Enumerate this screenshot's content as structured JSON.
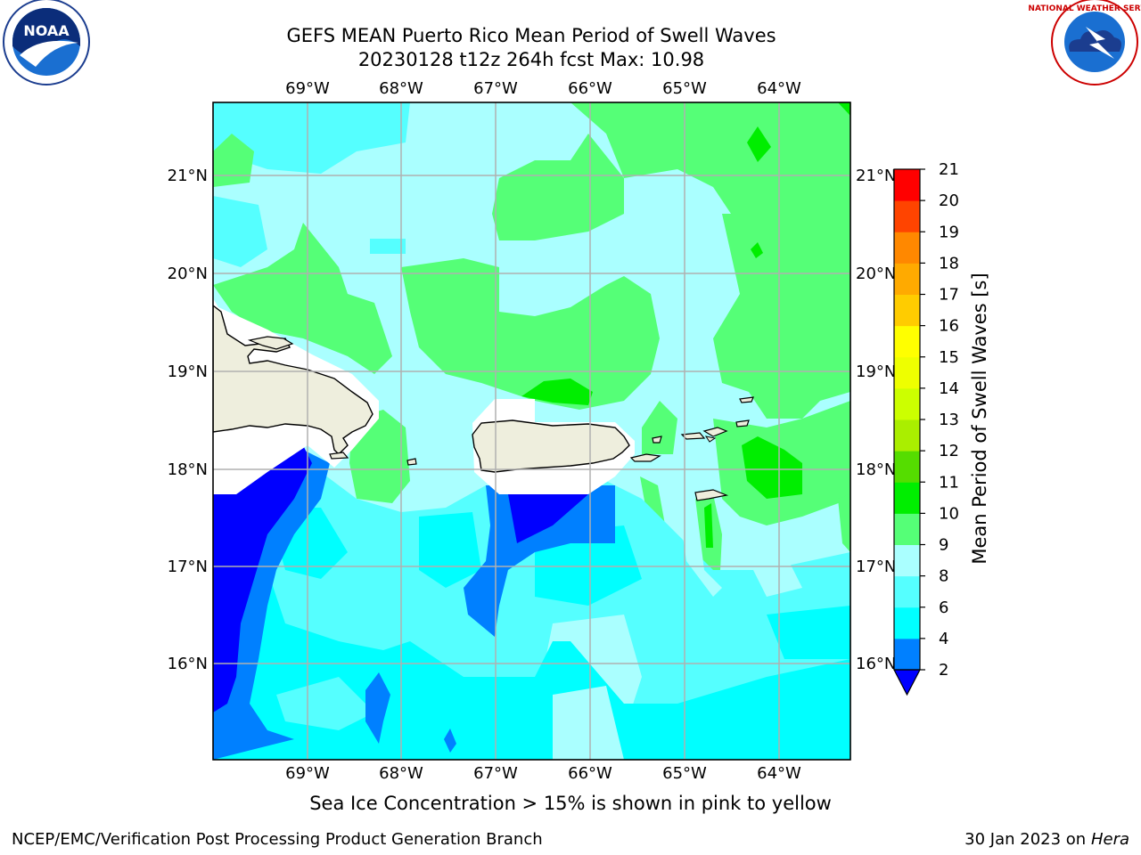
{
  "title_line1": "GEFS MEAN Puerto Rico Mean Period of Swell Waves",
  "title_line2": "20230128 t12z 264h fcst   Max: 10.98",
  "lon_labels": [
    "69°W",
    "68°W",
    "67°W",
    "66°W",
    "65°W",
    "64°W"
  ],
  "lat_labels": [
    "21°N",
    "20°N",
    "19°N",
    "18°N",
    "17°N",
    "16°N"
  ],
  "colorbar": {
    "label": "Mean Period of Swell Waves [s]",
    "ticks": [
      "2",
      "4",
      "6",
      "8",
      "9",
      "10",
      "11",
      "12",
      "13",
      "14",
      "15",
      "16",
      "17",
      "18",
      "19",
      "20",
      "21"
    ],
    "colors": [
      "#0000ff",
      "#0080ff",
      "#00ffff",
      "#55ffff",
      "#aaffff",
      "#55ff77",
      "#00ee00",
      "#55dd00",
      "#aaee00",
      "#ccff00",
      "#eeff00",
      "#ffff00",
      "#ffcc00",
      "#ffaa00",
      "#ff8800",
      "#ff4400",
      "#ff0000"
    ]
  },
  "map_colors": {
    "land": "#eeeedd",
    "c2": "#0000ff",
    "c4": "#0080ff",
    "c6": "#00ffff",
    "c8": "#55ffff",
    "c9": "#aaffff",
    "c10": "#55ff77",
    "c11": "#00ee00"
  },
  "caption": "Sea Ice Concentration > 15% is shown in pink to yellow",
  "footer_left": "NCEP/EMC/Verification Post Processing Product Generation Branch",
  "footer_date": "30 Jan 2023 on ",
  "footer_host": "Hera",
  "logo_left_text": "NOAA",
  "logo_right_text": "NATIONAL WEATHER SERVICE"
}
